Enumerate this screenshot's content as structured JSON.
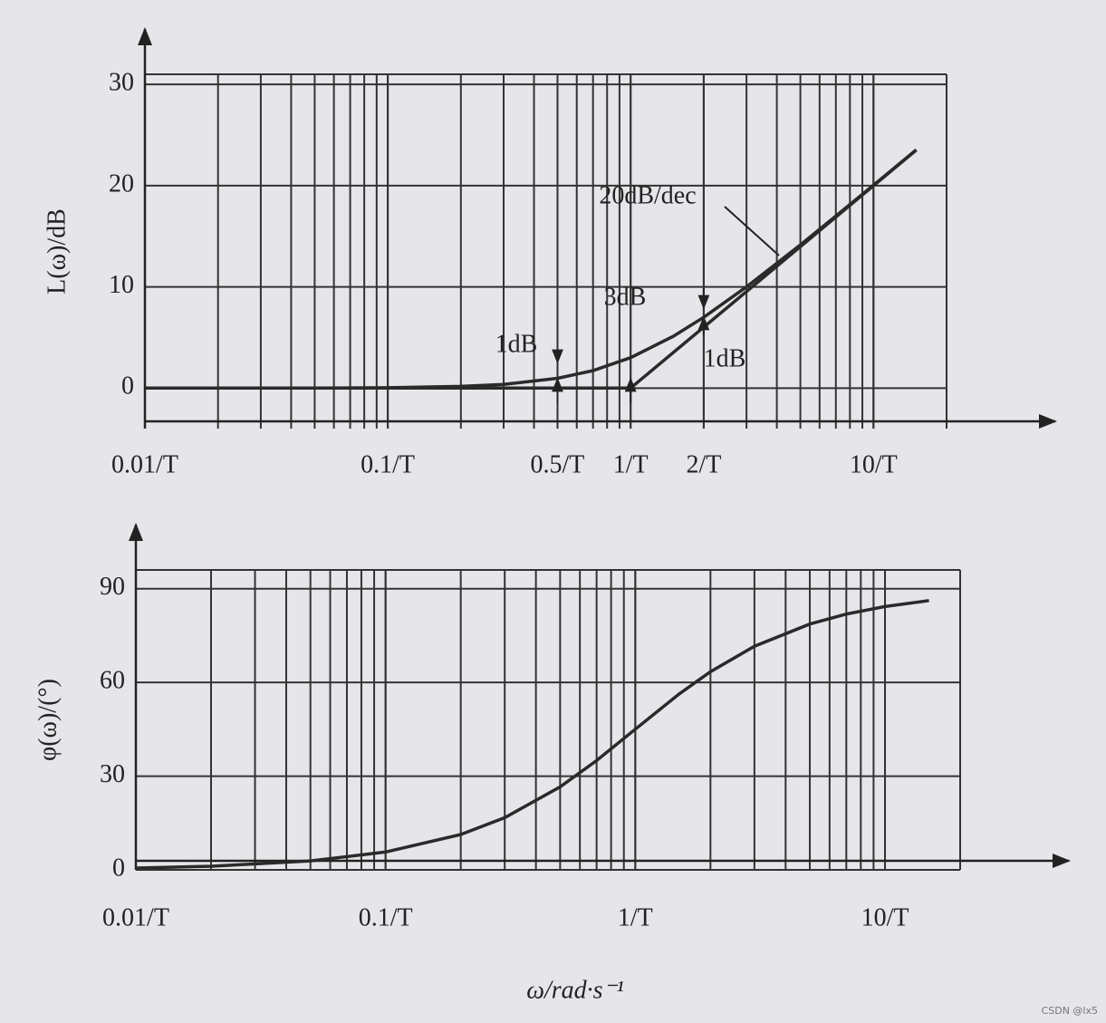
{
  "chart_data": [
    {
      "type": "line",
      "y_label": "L(ω)/dB",
      "log_x": true,
      "grid": true,
      "xlim": [
        0.01,
        20
      ],
      "ylim": [
        -4,
        31
      ],
      "xticks": [
        {
          "value": 0.01,
          "label": "0.01/T"
        },
        {
          "value": 0.1,
          "label": "0.1/T"
        },
        {
          "value": 0.5,
          "label": "0.5/T"
        },
        {
          "value": 1,
          "label": "1/T"
        },
        {
          "value": 2,
          "label": "2/T"
        },
        {
          "value": 10,
          "label": "10/T"
        }
      ],
      "yticks": [
        0,
        10,
        20,
        30
      ],
      "annotations": [
        "20dB/dec",
        "3dB",
        "1dB",
        "1dB"
      ],
      "series": [
        {
          "color": "#2a2a2a",
          "x": [
            0.01,
            0.02,
            0.05,
            0.1,
            0.2,
            0.3,
            0.5,
            0.7,
            1,
            1.5,
            2,
            3,
            5,
            7,
            10,
            15
          ],
          "values": [
            0.0,
            0.0,
            0.01,
            0.04,
            0.17,
            0.37,
            0.97,
            1.73,
            3.01,
            5.12,
            6.99,
            10.0,
            14.15,
            17.0,
            20.04,
            23.54
          ]
        },
        {
          "color": "#2a2a2a",
          "x": [
            0.01,
            1,
            15
          ],
          "values": [
            0,
            0,
            23.52
          ]
        }
      ]
    },
    {
      "type": "line",
      "y_label": "φ(ω)/(°)",
      "x_label": "ω/rad·s⁻¹",
      "log_x": true,
      "grid": true,
      "xlim": [
        0.01,
        20
      ],
      "ylim": [
        0,
        96
      ],
      "xticks": [
        {
          "value": 0.01,
          "label": "0.01/T"
        },
        {
          "value": 0.1,
          "label": "0.1/T"
        },
        {
          "value": 1,
          "label": "1/T"
        },
        {
          "value": 10,
          "label": "10/T"
        }
      ],
      "yticks": [
        0,
        30,
        60,
        90
      ],
      "series": [
        {
          "color": "#2a2a2a",
          "x": [
            0.01,
            0.02,
            0.05,
            0.1,
            0.2,
            0.3,
            0.5,
            0.7,
            1,
            1.5,
            2,
            3,
            5,
            7,
            10,
            15
          ],
          "values": [
            0.57,
            1.15,
            2.86,
            5.71,
            11.31,
            16.7,
            26.57,
            34.99,
            45,
            56.31,
            63.43,
            71.57,
            78.69,
            81.87,
            84.29,
            86.19
          ]
        }
      ]
    }
  ],
  "watermark": "CSDN @lx5"
}
